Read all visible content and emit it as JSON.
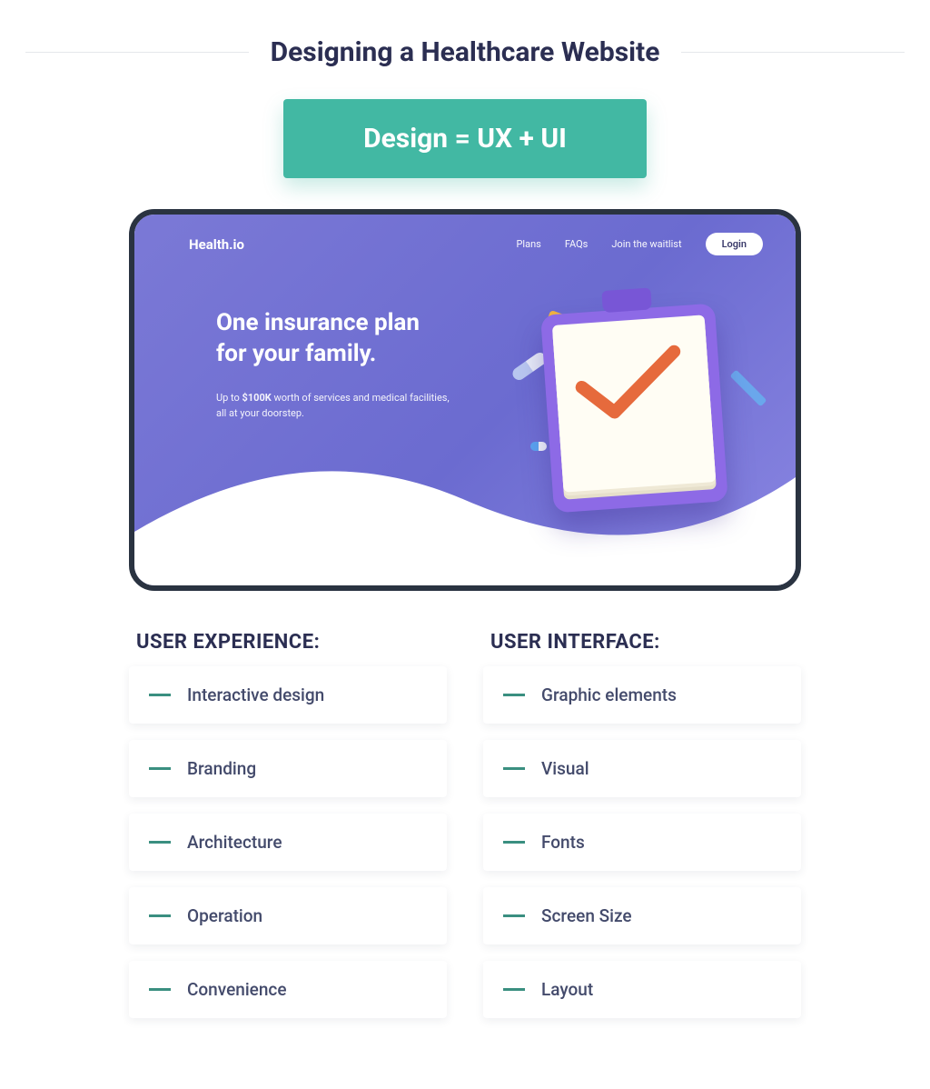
{
  "title": "Designing a Healthcare Website",
  "equation": "Design = UX + UI",
  "colors": {
    "title_text": "#2b2e52",
    "rule": "#e5e7eb",
    "equation_bg": "#42b8a3",
    "equation_text": "#ffffff",
    "frame_border": "#2a3341",
    "hero_grad_from": "#7b79d6",
    "hero_grad_to": "#8a86e2",
    "dash": "#3a8f80",
    "item_text": "#434a6b",
    "card_shadow": "rgba(40,50,80,.08)",
    "check_stroke": "#e66a3c"
  },
  "mockup": {
    "brand": "Health.io",
    "nav": [
      "Plans",
      "FAQs",
      "Join the waitlist"
    ],
    "login": "Login",
    "headline_l1": "One insurance plan",
    "headline_l2": "for your family.",
    "sub_before": "Up to ",
    "sub_bold": "$100K",
    "sub_after": " worth of services and medical facilities, all at your doorstep."
  },
  "ux": {
    "title": "User Experience:",
    "items": [
      "Interactive design",
      "Branding",
      "Architecture",
      "Operation",
      "Convenience"
    ]
  },
  "ui": {
    "title": "User Interface:",
    "items": [
      "Graphic elements",
      "Visual",
      "Fonts",
      "Screen Size",
      "Layout"
    ]
  }
}
